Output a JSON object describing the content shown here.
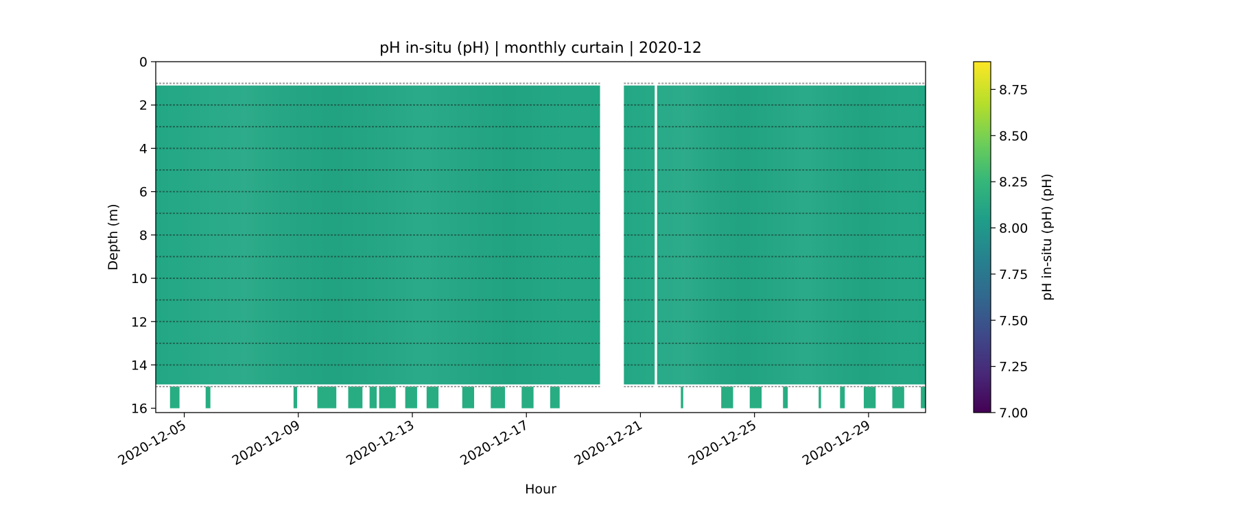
{
  "chart_data": {
    "type": "heatmap",
    "title": "pH in-situ (pH) | monthly curtain | 2020-12",
    "xlabel": "Hour",
    "ylabel": "Depth (m)",
    "x_range": [
      "2020-12-04",
      "2020-12-31"
    ],
    "y_range": [
      0,
      16.2
    ],
    "y_inverted": true,
    "x_ticks": [
      "2020-12-05",
      "2020-12-09",
      "2020-12-13",
      "2020-12-17",
      "2020-12-21",
      "2020-12-25",
      "2020-12-29"
    ],
    "y_ticks": [
      "0",
      "2",
      "4",
      "6",
      "8",
      "10",
      "12",
      "14",
      "16"
    ],
    "colorbar": {
      "label": "pH in-situ (pH) (pH)",
      "range": [
        7.0,
        8.9
      ],
      "ticks": [
        "7.00",
        "7.25",
        "7.50",
        "7.75",
        "8.00",
        "8.25",
        "8.50",
        "8.75"
      ],
      "colormap": "viridis"
    },
    "segments": [
      {
        "start": "2020-12-04",
        "end": "2020-12-19 14:00",
        "depth_top": 1.1,
        "depth_bottom": 14.9,
        "value": 8.15
      },
      {
        "start": "2020-12-20 10:00",
        "end": "2020-12-31",
        "depth_top": 1.1,
        "depth_bottom": 14.9,
        "value": 8.15
      }
    ],
    "sensor_depths": [
      1,
      2,
      3,
      4,
      5,
      6,
      7,
      8,
      9,
      10,
      11,
      12,
      13,
      14,
      15
    ],
    "deep_bins": {
      "depth_top": 15.0,
      "depth_bottom": 16.0,
      "intervals": [
        [
          "2020-12-04 12:00",
          "2020-12-04 20:00"
        ],
        [
          "2020-12-05 18:00",
          "2020-12-05 22:00"
        ],
        [
          "2020-12-08 20:00",
          "2020-12-08 23:00"
        ],
        [
          "2020-12-09 16:00",
          "2020-12-10 08:00"
        ],
        [
          "2020-12-10 18:00",
          "2020-12-11 06:00"
        ],
        [
          "2020-12-11 12:00",
          "2020-12-11 18:00"
        ],
        [
          "2020-12-11 20:00",
          "2020-12-12 10:00"
        ],
        [
          "2020-12-12 18:00",
          "2020-12-13 04:00"
        ],
        [
          "2020-12-13 12:00",
          "2020-12-13 22:00"
        ],
        [
          "2020-12-14 18:00",
          "2020-12-15 04:00"
        ],
        [
          "2020-12-15 18:00",
          "2020-12-16 06:00"
        ],
        [
          "2020-12-16 20:00",
          "2020-12-17 06:00"
        ],
        [
          "2020-12-17 20:00",
          "2020-12-18 04:00"
        ],
        [
          "2020-12-22 10:00",
          "2020-12-22 12:00"
        ],
        [
          "2020-12-23 20:00",
          "2020-12-24 06:00"
        ],
        [
          "2020-12-24 20:00",
          "2020-12-25 06:00"
        ],
        [
          "2020-12-26 00:00",
          "2020-12-26 04:00"
        ],
        [
          "2020-12-27 06:00",
          "2020-12-27 08:00"
        ],
        [
          "2020-12-28 00:00",
          "2020-12-28 04:00"
        ],
        [
          "2020-12-28 20:00",
          "2020-12-29 06:00"
        ],
        [
          "2020-12-29 20:00",
          "2020-12-30 06:00"
        ],
        [
          "2020-12-30 20:00",
          "2020-12-31 00:00"
        ]
      ]
    },
    "gaps": [
      {
        "start": "2020-12-19 14:00",
        "end": "2020-12-20 10:00"
      },
      {
        "start": "2020-12-21 12:00",
        "end": "2020-12-21 14:00"
      }
    ],
    "colors": {
      "fill": "#22a784",
      "fill_alt": "#27ad81",
      "sensor_line": "#1d4a3e",
      "surface_line": "#9a9a9a"
    }
  }
}
